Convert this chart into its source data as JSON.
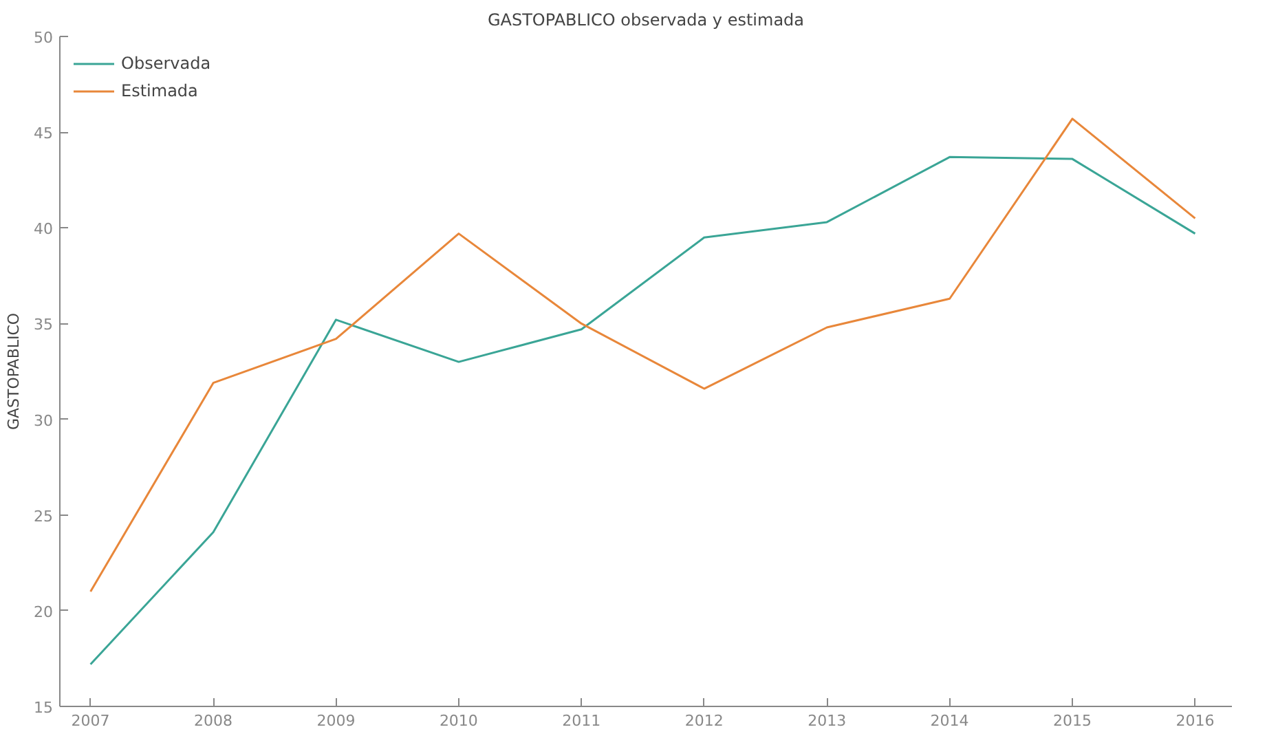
{
  "chart_data": {
    "type": "line",
    "title": "GASTOPABLICO observada y estimada",
    "ylabel": "GASTOPABLICO",
    "x": [
      2007,
      2008,
      2009,
      2010,
      2011,
      2012,
      2013,
      2014,
      2015,
      2016
    ],
    "series": [
      {
        "name": "Observada",
        "color": "#3aa596",
        "values": [
          17.2,
          24.1,
          35.2,
          33.0,
          34.7,
          39.5,
          40.3,
          43.7,
          43.6,
          39.7
        ]
      },
      {
        "name": "Estimada",
        "color": "#e8873a",
        "values": [
          21.0,
          31.9,
          34.2,
          39.7,
          35.0,
          31.6,
          34.8,
          36.3,
          45.7,
          40.5
        ]
      }
    ],
    "xlim": [
      2006.75,
      2016.3
    ],
    "xticks": [
      2007,
      2008,
      2009,
      2010,
      2011,
      2012,
      2013,
      2014,
      2015,
      2016
    ],
    "ylim": [
      15,
      50
    ],
    "yticks": [
      15,
      20,
      25,
      30,
      35,
      40,
      45,
      50
    ],
    "grid": false,
    "legend": "top left",
    "marker": "none",
    "line_style": "solid"
  }
}
